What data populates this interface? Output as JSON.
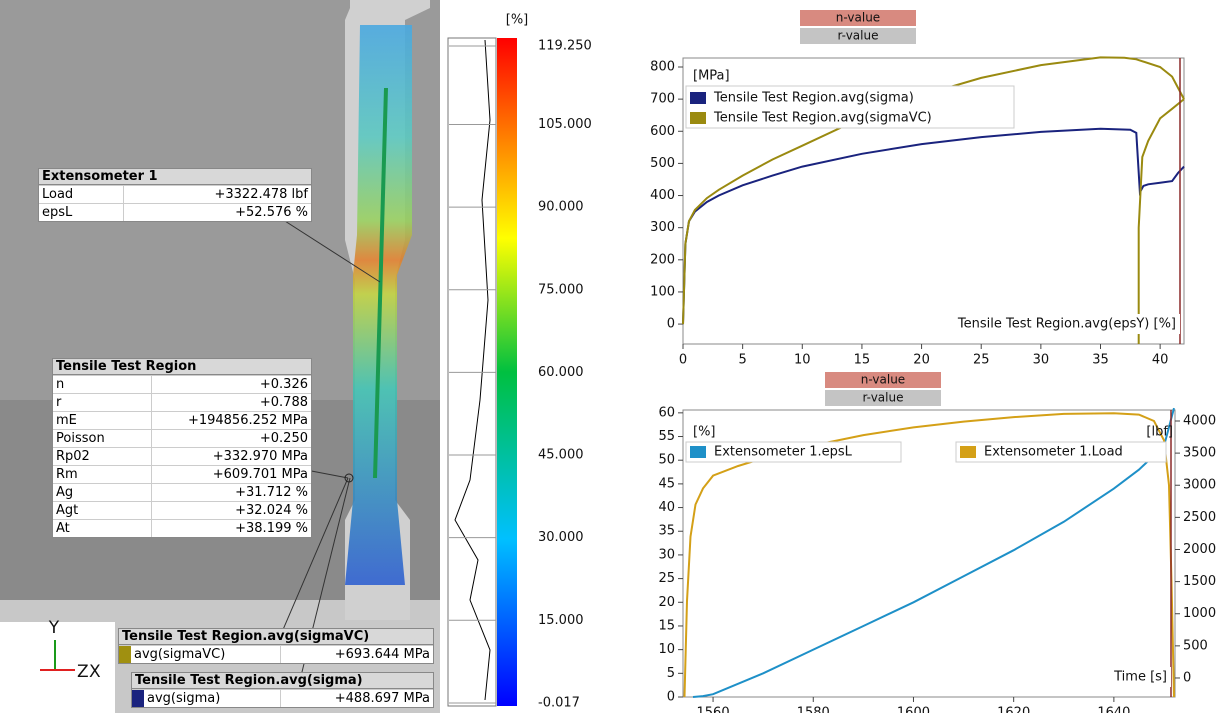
{
  "image_panel": {
    "axis_labels": [
      "Y",
      "Z",
      "X"
    ],
    "extensometer": {
      "title": "Extensometer 1",
      "rows": [
        [
          "Load",
          "+3322.478 lbf"
        ],
        [
          "epsL",
          "+52.576 %"
        ]
      ]
    },
    "region": {
      "title": "Tensile Test Region",
      "rows": [
        [
          "n",
          "+0.326"
        ],
        [
          "r",
          "+0.788"
        ],
        [
          "mE",
          "+194856.252 MPa"
        ],
        [
          "Poisson",
          "+0.250"
        ],
        [
          "Rp02",
          "+332.970 MPa"
        ],
        [
          "Rm",
          "+609.701 MPa"
        ],
        [
          "Ag",
          "+31.712 %"
        ],
        [
          "Agt",
          "+32.024 %"
        ],
        [
          "At",
          "+38.199 %"
        ]
      ]
    },
    "sigmaVC": {
      "title": "Tensile Test Region.avg(sigmaVC)",
      "rows": [
        [
          "avg(sigmaVC)",
          "+693.644 MPa"
        ]
      ]
    },
    "sigma": {
      "title": "Tensile Test Region.avg(sigma)",
      "rows": [
        [
          "avg(sigma)",
          "+488.697 MPa"
        ]
      ]
    }
  },
  "colorbar": {
    "unit": "[%]",
    "ticks": [
      {
        "value": 119.25,
        "label": "119.250"
      },
      {
        "value": 105,
        "label": "105.000"
      },
      {
        "value": 90,
        "label": "90.000"
      },
      {
        "value": 75,
        "label": "75.000"
      },
      {
        "value": 60,
        "label": "60.000"
      },
      {
        "value": 45,
        "label": "45.000"
      },
      {
        "value": 30,
        "label": "30.000"
      },
      {
        "value": 15,
        "label": "15.000"
      },
      {
        "value": -0.017,
        "label": "-0.017"
      }
    ]
  },
  "chart_data": [
    {
      "type": "line",
      "buttons": [
        "n-value",
        "r-value"
      ],
      "y_label": "[MPa]",
      "x_label": "Tensile Test Region.avg(epsY) [%]",
      "xlim": [
        0,
        42
      ],
      "xticks": [
        0,
        5,
        10,
        15,
        20,
        25,
        30,
        35,
        40
      ],
      "ylim": [
        -62,
        828
      ],
      "yticks": [
        0,
        100,
        200,
        300,
        400,
        500,
        600,
        700,
        800
      ],
      "series": [
        {
          "name": "Tensile Test Region.avg(sigma)",
          "color": "#1a237e",
          "x": [
            0,
            0.2,
            0.5,
            1,
            2,
            3,
            5,
            7.5,
            10,
            15,
            20,
            25,
            30,
            35,
            37.5,
            38,
            38.3,
            38.6,
            39,
            40,
            41,
            41.5,
            42
          ],
          "values": [
            0,
            250,
            320,
            350,
            380,
            400,
            432,
            462,
            490,
            530,
            560,
            582,
            598,
            608,
            605,
            595,
            410,
            430,
            435,
            440,
            445,
            470,
            490
          ]
        },
        {
          "name": "Tensile Test Region.avg(sigmaVC)",
          "color": "#9a8a10",
          "x": [
            0,
            0.2,
            0.5,
            1,
            2,
            3,
            5,
            7.5,
            10,
            15,
            20,
            25,
            30,
            35,
            37,
            38,
            40,
            41,
            42,
            null,
            38.2,
            38.2,
            38.5,
            39,
            40,
            41,
            42
          ],
          "values": [
            0,
            250,
            320,
            355,
            392,
            418,
            462,
            512,
            555,
            642,
            712,
            766,
            806,
            830,
            829,
            824,
            800,
            770,
            700,
            null,
            -62,
            300,
            520,
            570,
            640,
            670,
            700
          ]
        }
      ]
    },
    {
      "type": "line",
      "buttons": [
        "n-value",
        "r-value"
      ],
      "y_label": "[%]",
      "y2_label": "[lbf]",
      "x_label": "Time [s]",
      "xlim": [
        1554,
        1652.2
      ],
      "xticks": [
        1560,
        1580,
        1600,
        1620,
        1640
      ],
      "ylim": [
        0,
        60.6
      ],
      "yticks": [
        0,
        5,
        10,
        15,
        20,
        25,
        30,
        35,
        40,
        45,
        50,
        55,
        60
      ],
      "y2lim": [
        -296,
        4171
      ],
      "y2ticks": [
        0,
        500,
        1000,
        1500,
        2000,
        2500,
        3000,
        3500,
        4000
      ],
      "series": [
        {
          "name": "Extensometer 1.epsL",
          "color": "#1e90c8",
          "x": [
            1556,
            1558,
            1560,
            1570,
            1580,
            1590,
            1600,
            1610,
            1620,
            1630,
            1640,
            1645,
            1650,
            1652
          ],
          "values": [
            0,
            0.2,
            0.6,
            5,
            10,
            15,
            20,
            25.5,
            31,
            37,
            44,
            48,
            53,
            61
          ]
        },
        {
          "name": "Extensometer 1.Load",
          "color": "#d4a017",
          "axis": "y2",
          "x": [
            1554.3,
            1554.8,
            1555.5,
            1556.5,
            1558,
            1560,
            1565,
            1570,
            1580,
            1590,
            1600,
            1610,
            1620,
            1630,
            1640,
            1645,
            1648,
            1650,
            1651,
            1651.5,
            1652
          ],
          "values": [
            -296,
            1200,
            2200,
            2700,
            2950,
            3150,
            3300,
            3420,
            3620,
            3780,
            3900,
            3990,
            4060,
            4110,
            4120,
            4100,
            4000,
            3700,
            3000,
            1500,
            -296
          ]
        }
      ]
    }
  ]
}
